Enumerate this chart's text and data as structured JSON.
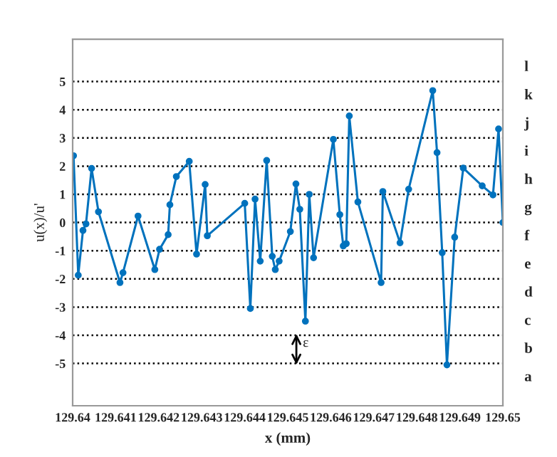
{
  "chart_data": {
    "type": "line",
    "xlabel": "x (mm)",
    "ylabel": "u(x)/u'",
    "xlim": [
      129.64,
      129.65
    ],
    "xticks": [
      129.64,
      129.641,
      129.642,
      129.643,
      129.644,
      129.645,
      129.646,
      129.647,
      129.648,
      129.649,
      129.65
    ],
    "ylim": [
      -6.5,
      6.5
    ],
    "yticks": [
      -5,
      -4,
      -3,
      -2,
      -1,
      0,
      1,
      2,
      3,
      4,
      5
    ],
    "grid": "y",
    "marker": "circle",
    "line_style": "solid",
    "annotations": [
      "ε",
      "a",
      "b",
      "c",
      "d",
      "e",
      "f",
      "g",
      "h",
      "i",
      "j",
      "k",
      "l"
    ],
    "series": [
      {
        "color": "#0072bd",
        "x": [
          129.64002,
          129.64013,
          129.64024,
          129.64031,
          129.64044,
          129.6406,
          129.6411,
          129.64117,
          129.64152,
          129.64191,
          129.64202,
          129.64222,
          129.64226,
          129.64241,
          129.64271,
          129.64288,
          129.64308,
          129.64313,
          129.644,
          129.64413,
          129.64424,
          129.64436,
          129.64451,
          129.64464,
          129.64471,
          129.6448,
          129.64506,
          129.64519,
          129.64528,
          129.64541,
          129.6455,
          129.6456,
          129.64606,
          129.64621,
          129.64629,
          129.64636,
          129.64643,
          129.64663,
          129.64717,
          129.64721,
          129.64761,
          129.64781,
          129.64837,
          129.64847,
          129.64859,
          129.6487,
          129.64888,
          129.64908,
          129.64952,
          129.64977,
          129.6499,
          129.65
        ],
        "values": [
          2.37,
          -1.87,
          -0.28,
          -0.05,
          1.92,
          0.38,
          -2.13,
          -1.78,
          0.23,
          -1.67,
          -0.95,
          -0.43,
          0.63,
          1.63,
          2.17,
          -1.12,
          1.35,
          -0.47,
          0.68,
          -3.05,
          0.83,
          -1.37,
          2.2,
          -1.2,
          -1.67,
          -1.37,
          -0.32,
          1.37,
          0.47,
          -3.5,
          1.0,
          -1.25,
          2.95,
          0.28,
          -0.83,
          -0.75,
          3.78,
          0.73,
          -2.13,
          1.1,
          -0.72,
          1.18,
          4.68,
          2.48,
          -1.07,
          -5.05,
          -0.52,
          1.93,
          1.3,
          0.98,
          3.32,
          0.0
        ]
      }
    ]
  }
}
